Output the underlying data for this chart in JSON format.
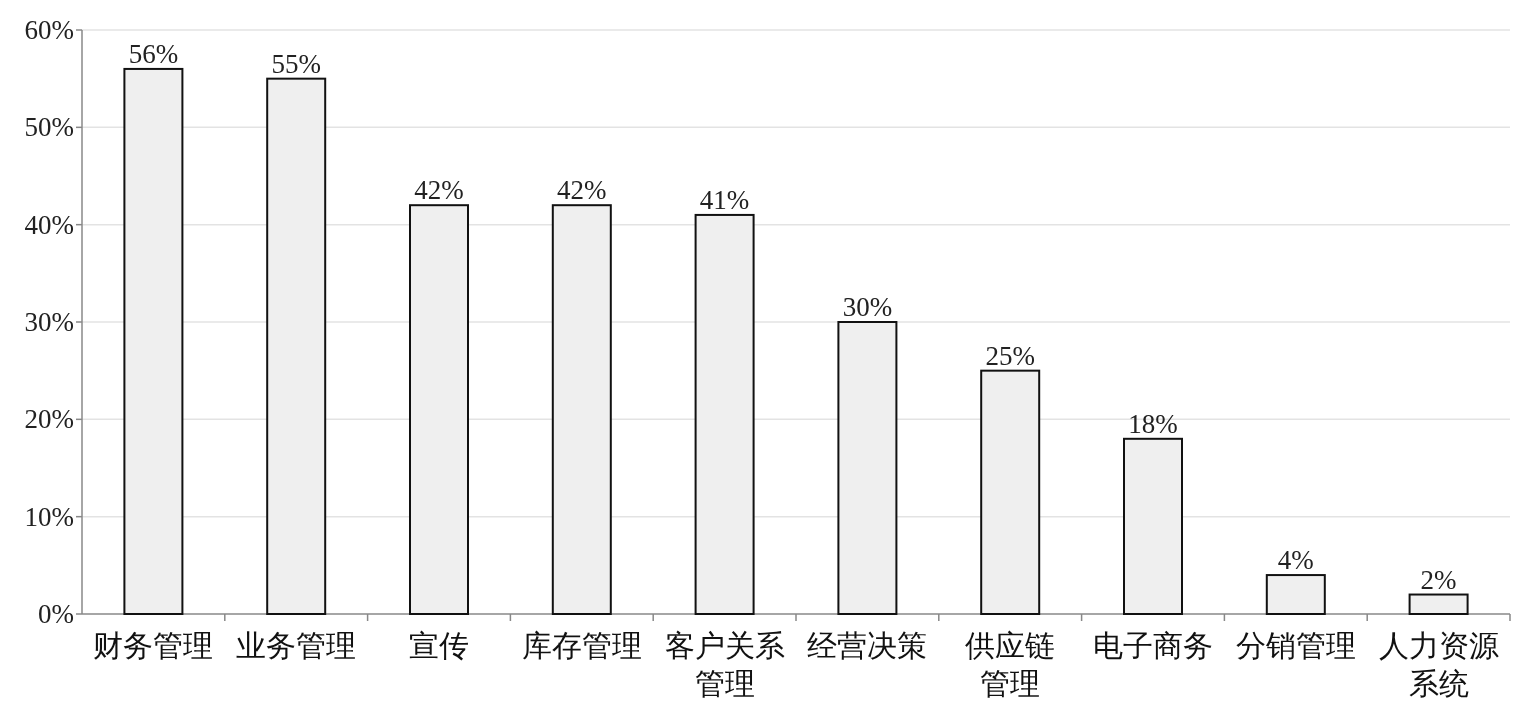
{
  "chart_data": {
    "type": "bar",
    "categories": [
      "财务管理",
      "业务管理",
      "宣传",
      "库存管理",
      "客户关系管理",
      "经营决策",
      "供应链管理",
      "电子商务",
      "分销管理",
      "人力资源系统"
    ],
    "values": [
      56,
      55,
      42,
      42,
      41,
      30,
      25,
      18,
      4,
      2
    ],
    "color": "#efefef",
    "ylim": [
      0,
      60
    ],
    "yticks": [
      {
        "value": 0,
        "label": "0%"
      },
      {
        "value": 10,
        "label": "10%"
      },
      {
        "value": 20,
        "label": "20%"
      },
      {
        "value": 30,
        "label": "30%"
      },
      {
        "value": 40,
        "label": "40%"
      },
      {
        "value": 50,
        "label": "50%"
      },
      {
        "value": 60,
        "label": "60%"
      }
    ],
    "grid": "y",
    "value_labels": [
      "56%",
      "55%",
      "42%",
      "42%",
      "41%",
      "30%",
      "25%",
      "18%",
      "4%",
      "2%"
    ]
  }
}
